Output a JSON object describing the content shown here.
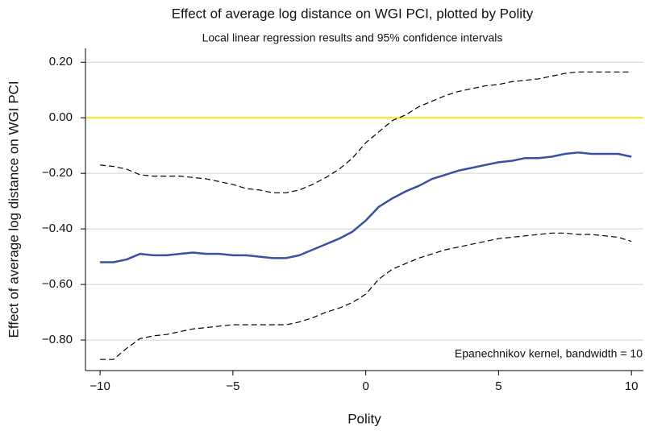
{
  "chart_data": {
    "type": "line",
    "title": "Effect of average log distance on WGI PCI, plotted by Polity",
    "subtitle": "Local linear regression results and 95% confidence intervals",
    "x_label": "Polity",
    "y_label": "Effect of average log distance on WGI PCI",
    "annotation": "Epanechnikov kernel, bandwidth = 10",
    "x": [
      -10,
      -9.5,
      -9,
      -8.5,
      -8,
      -7.5,
      -7,
      -6.5,
      -6,
      -5.5,
      -5,
      -4.5,
      -4,
      -3.5,
      -3,
      -2.5,
      -2,
      -1.5,
      -1,
      -0.5,
      0,
      0.5,
      1,
      1.5,
      2,
      2.5,
      3,
      3.5,
      4,
      4.5,
      5,
      5.5,
      6,
      6.5,
      7,
      7.5,
      8,
      8.5,
      9,
      9.5,
      10
    ],
    "series": [
      {
        "color": "#3a50a0",
        "style": "solid",
        "values": [
          -0.52,
          -0.52,
          -0.51,
          -0.49,
          -0.495,
          -0.495,
          -0.49,
          -0.485,
          -0.49,
          -0.49,
          -0.495,
          -0.495,
          -0.5,
          -0.505,
          -0.505,
          -0.495,
          -0.475,
          -0.455,
          -0.435,
          -0.41,
          -0.37,
          -0.32,
          -0.29,
          -0.265,
          -0.245,
          -0.22,
          -0.205,
          -0.19,
          -0.18,
          -0.17,
          -0.16,
          -0.155,
          -0.145,
          -0.145,
          -0.14,
          -0.13,
          -0.125,
          -0.13,
          -0.13,
          -0.13,
          -0.14
        ]
      },
      {
        "color": "#000000",
        "style": "dashed",
        "values": [
          -0.17,
          -0.175,
          -0.185,
          -0.205,
          -0.21,
          -0.21,
          -0.21,
          -0.215,
          -0.22,
          -0.23,
          -0.24,
          -0.255,
          -0.26,
          -0.27,
          -0.27,
          -0.26,
          -0.24,
          -0.215,
          -0.185,
          -0.145,
          -0.09,
          -0.05,
          -0.01,
          0.01,
          0.04,
          0.06,
          0.08,
          0.095,
          0.105,
          0.115,
          0.12,
          0.13,
          0.135,
          0.14,
          0.15,
          0.16,
          0.165,
          0.165,
          0.165,
          0.165,
          0.165
        ]
      },
      {
        "color": "#000000",
        "style": "dashed",
        "values": [
          -0.87,
          -0.87,
          -0.83,
          -0.795,
          -0.785,
          -0.78,
          -0.77,
          -0.76,
          -0.755,
          -0.75,
          -0.745,
          -0.745,
          -0.745,
          -0.745,
          -0.745,
          -0.735,
          -0.72,
          -0.7,
          -0.685,
          -0.665,
          -0.635,
          -0.58,
          -0.545,
          -0.525,
          -0.505,
          -0.49,
          -0.475,
          -0.465,
          -0.455,
          -0.445,
          -0.435,
          -0.43,
          -0.425,
          -0.42,
          -0.415,
          -0.415,
          -0.42,
          -0.42,
          -0.425,
          -0.43,
          -0.445
        ]
      }
    ],
    "reference_line": {
      "value": 0,
      "color": "#f5e51b"
    },
    "xlim": [
      -10.55,
      10.45
    ],
    "xticks": [
      {
        "value": -10,
        "label": "−10"
      },
      {
        "value": -5,
        "label": "−5"
      },
      0,
      5,
      10
    ],
    "ylim": [
      -0.91,
      0.25
    ],
    "yticks": [
      {
        "value": -0.8,
        "label": "−0.80"
      },
      {
        "value": -0.6,
        "label": "−0.60"
      },
      {
        "value": -0.4,
        "label": "−0.40"
      },
      {
        "value": -0.2,
        "label": "−0.20"
      },
      {
        "value": 0,
        "label": "0.00"
      },
      {
        "value": 0.2,
        "label": "0.20"
      }
    ],
    "grid": true
  }
}
